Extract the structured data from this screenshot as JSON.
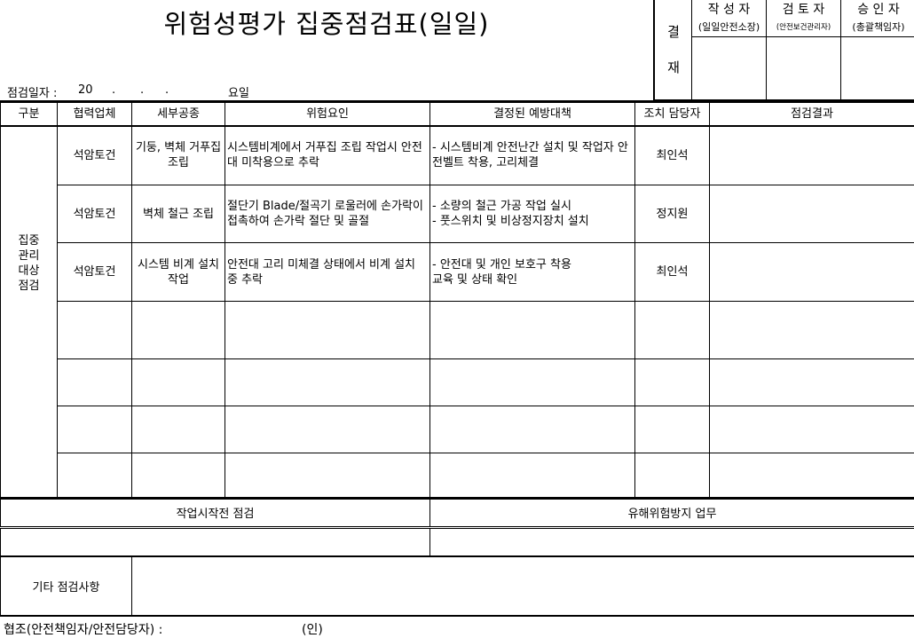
{
  "title": "위험성평가 집중점검표(일일)",
  "date_row": {
    "label": "점검일자 :",
    "year": "20",
    "sep1": ".",
    "sep2": ".",
    "sep3": ".",
    "weekday": "요일"
  },
  "approval": {
    "label_top": "결",
    "label_bottom": "재",
    "roles": [
      {
        "title": "작 성 자",
        "sub": "(일일안전소장)"
      },
      {
        "title": "검 토 자",
        "sub": "(안전보건관리자)"
      },
      {
        "title": "승 인 자",
        "sub": "(총괄책임자)"
      }
    ]
  },
  "table": {
    "headers": [
      "구분",
      "협력업체",
      "세부공종",
      "위험요인",
      "결정된 예방대책",
      "조치 담당자",
      "점검결과"
    ],
    "category": "집중\n관리\n대상\n점검",
    "rows": [
      {
        "company": "석암토건",
        "work": "기둥, 벽체 거푸집 조립",
        "hazard": "시스템비계에서 거푸집 조립 작업시 안전대 미착용으로 추락",
        "measure": "- 시스템비계 안전난간 설치 및 작업자 안전벨트 착용, 고리체결",
        "person": "최인석",
        "result": ""
      },
      {
        "company": "석암토건",
        "work": "벽체 철근 조립",
        "hazard": "절단기 Blade/절곡기 로울러에 손가락이 접촉하여 손가락 절단 및 골절",
        "measure": "- 소량의 철근 가공 작업 실시\n- 풋스위치 및 비상정지장치 설치",
        "person": "정지원",
        "result": ""
      },
      {
        "company": "석암토건",
        "work": "시스템 비계 설치 작업",
        "hazard": "안전대 고리 미체결 상태에서 비계 설치 중 추락",
        "measure": "- 안전대 및 개인 보호구 착용\n   교육 및 상태 확인",
        "person": "최인석",
        "result": ""
      },
      {
        "company": "",
        "work": "",
        "hazard": "",
        "measure": "",
        "person": "",
        "result": ""
      },
      {
        "company": "",
        "work": "",
        "hazard": "",
        "measure": "",
        "person": "",
        "result": ""
      },
      {
        "company": "",
        "work": "",
        "hazard": "",
        "measure": "",
        "person": "",
        "result": ""
      },
      {
        "company": "",
        "work": "",
        "hazard": "",
        "measure": "",
        "person": "",
        "result": ""
      }
    ]
  },
  "pre_work": {
    "label": "작업시작전 점검",
    "value": ""
  },
  "harm_prevention": {
    "label": "유해위험방지 업무",
    "value": ""
  },
  "other": {
    "label": "기타 점검사항",
    "value": ""
  },
  "footer": {
    "label": "협조(안전책임자/안전담당자) :",
    "seal": "(인)"
  }
}
